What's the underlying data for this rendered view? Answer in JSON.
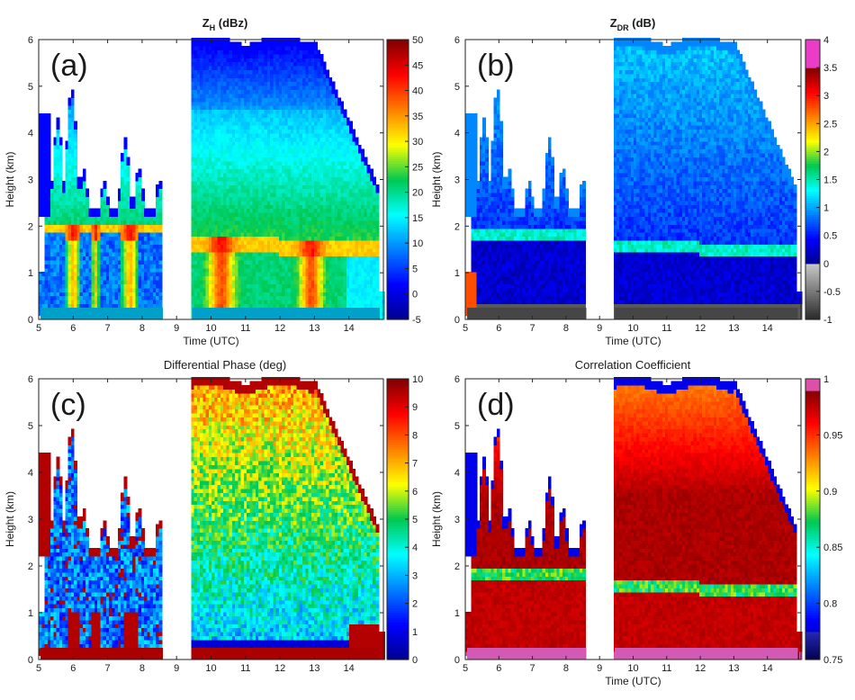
{
  "chart_data": [
    {
      "type": "heatmap",
      "panel_label": "(a)",
      "title": "Z",
      "title_sub": "H",
      "title_suffix": " (dBz)",
      "xlabel": "Time (UTC)",
      "ylabel": "Height (km)",
      "x_ticks": [
        "5",
        "6",
        "7",
        "8",
        "9",
        "10",
        "11",
        "12",
        "13",
        "14"
      ],
      "y_ticks": [
        "0",
        "1",
        "2",
        "3",
        "4",
        "5",
        "6"
      ],
      "xlim": [
        5,
        15
      ],
      "ylim": [
        0,
        6
      ],
      "colorbar": {
        "min": -5,
        "max": 50,
        "ticks": [
          "-5",
          "0",
          "5",
          "10",
          "15",
          "20",
          "25",
          "30",
          "35",
          "40",
          "45",
          "50"
        ]
      },
      "colormap": "jet",
      "features": {
        "melting_layer_km": 1.6,
        "gap_hours": [
          8.6,
          9.4
        ],
        "bright_spots_hours": [
          6.0,
          7.7,
          10.3,
          12.9
        ],
        "cloud_top_km": 6.0
      }
    },
    {
      "type": "heatmap",
      "panel_label": "(b)",
      "title": "Z",
      "title_sub": "DR",
      "title_suffix": " (dB)",
      "xlabel": "Time (UTC)",
      "ylabel": "Height (km)",
      "x_ticks": [
        "5",
        "6",
        "7",
        "8",
        "9",
        "10",
        "11",
        "12",
        "13",
        "14"
      ],
      "y_ticks": [
        "0",
        "1",
        "2",
        "3",
        "4",
        "5",
        "6"
      ],
      "xlim": [
        5,
        15
      ],
      "ylim": [
        0,
        6
      ],
      "colorbar": {
        "min": -1,
        "max": 4,
        "ticks": [
          "-1",
          "-0.5",
          "0",
          "0.5",
          "1",
          "1.5",
          "2",
          "2.5",
          "3",
          "3.5",
          "4"
        ]
      },
      "colormap": "gray-jet-magenta",
      "features": {
        "melting_layer_km": 1.6,
        "gap_hours": [
          8.6,
          9.4
        ]
      }
    },
    {
      "type": "heatmap",
      "panel_label": "(c)",
      "title": "Differential Phase (deg)",
      "xlabel": "",
      "ylabel": "Height (km)",
      "x_ticks": [
        "5",
        "6",
        "7",
        "8",
        "9",
        "10",
        "11",
        "12",
        "13",
        "14"
      ],
      "y_ticks": [
        "0",
        "1",
        "2",
        "3",
        "4",
        "5",
        "6"
      ],
      "xlim": [
        5,
        15
      ],
      "ylim": [
        0,
        6
      ],
      "colorbar": {
        "min": 0,
        "max": 10,
        "ticks": [
          "0",
          "1",
          "2",
          "3",
          "4",
          "5",
          "6",
          "7",
          "8",
          "9",
          "10"
        ]
      },
      "colormap": "jet",
      "features": {
        "melting_layer_km": 1.6,
        "gap_hours": [
          8.6,
          9.4
        ]
      }
    },
    {
      "type": "heatmap",
      "panel_label": "(d)",
      "title": "Correlation Coefficient",
      "xlabel": "Time (UTC)",
      "ylabel": "Height (km)",
      "x_ticks": [
        "5",
        "6",
        "7",
        "8",
        "9",
        "10",
        "11",
        "12",
        "13",
        "14"
      ],
      "y_ticks": [
        "0",
        "1",
        "2",
        "3",
        "4",
        "5",
        "6"
      ],
      "xlim": [
        5,
        15
      ],
      "ylim": [
        0,
        6
      ],
      "colorbar": {
        "min": 0.75,
        "max": 1,
        "ticks": [
          "0.75",
          "0.8",
          "0.85",
          "0.9",
          "0.95",
          "1"
        ]
      },
      "colormap": "black-jet-magenta",
      "features": {
        "melting_layer_km": 1.6,
        "gap_hours": [
          8.6,
          9.4
        ]
      }
    }
  ]
}
